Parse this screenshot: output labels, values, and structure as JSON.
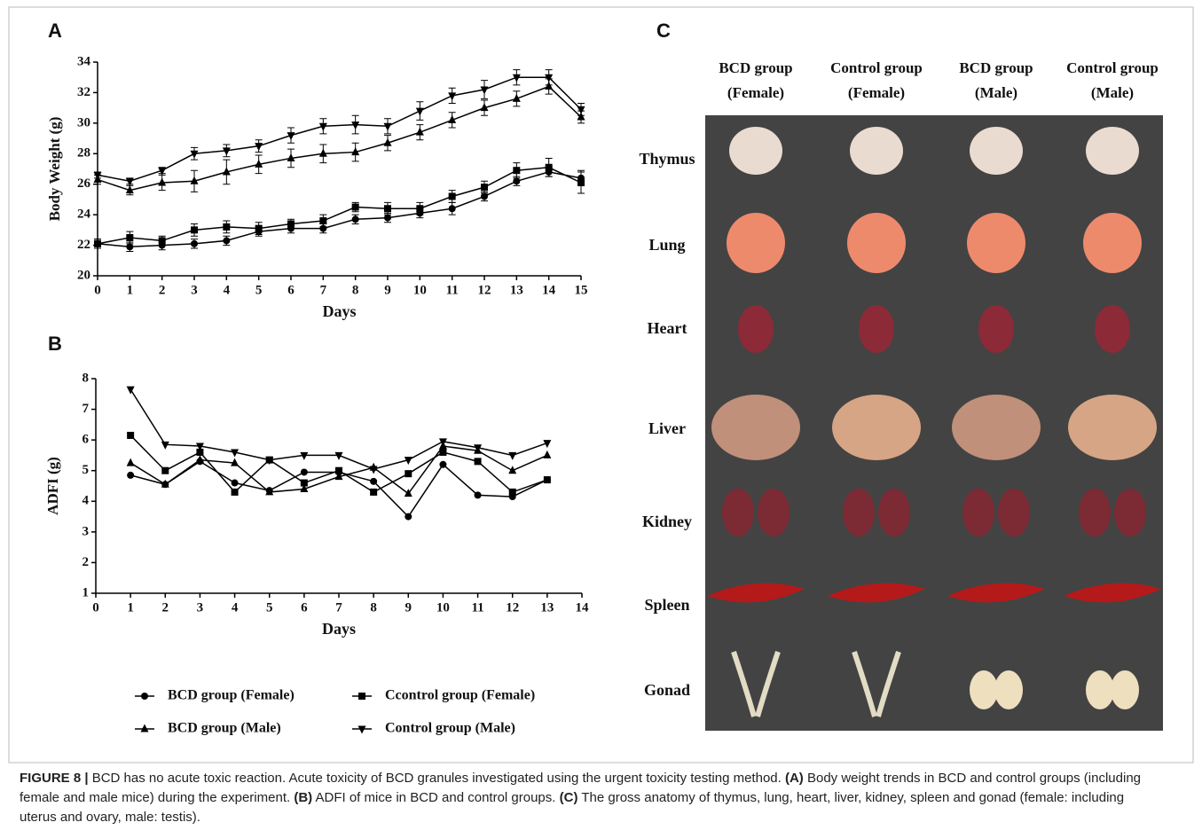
{
  "chart_data": [
    {
      "type": "line",
      "panel_label": "A",
      "x_label": "Days",
      "y_label": "Body Weight (g)",
      "x": [
        0,
        1,
        2,
        3,
        4,
        5,
        6,
        7,
        8,
        9,
        10,
        11,
        12,
        13,
        14,
        15
      ],
      "xlim": [
        0,
        15
      ],
      "xticks": [
        0,
        1,
        2,
        3,
        4,
        5,
        6,
        7,
        8,
        9,
        10,
        11,
        12,
        13,
        14,
        15
      ],
      "ylim": [
        20,
        34
      ],
      "yticks": [
        20,
        22,
        24,
        26,
        28,
        30,
        32,
        34
      ],
      "color": "#000000",
      "series": [
        {
          "marker": "circle",
          "values": [
            22.1,
            21.9,
            22.0,
            22.1,
            22.3,
            22.9,
            23.1,
            23.1,
            23.7,
            23.8,
            24.1,
            24.4,
            25.2,
            26.2,
            26.8,
            26.4
          ],
          "errors": [
            0.3,
            0.3,
            0.3,
            0.3,
            0.3,
            0.3,
            0.3,
            0.3,
            0.3,
            0.3,
            0.3,
            0.4,
            0.3,
            0.3,
            0.3,
            0.5
          ]
        },
        {
          "marker": "square",
          "values": [
            22.1,
            22.5,
            22.3,
            23.0,
            23.2,
            23.1,
            23.4,
            23.6,
            24.5,
            24.4,
            24.4,
            25.2,
            25.8,
            26.9,
            27.1,
            26.1
          ],
          "errors": [
            0.3,
            0.4,
            0.3,
            0.4,
            0.4,
            0.4,
            0.3,
            0.4,
            0.3,
            0.4,
            0.4,
            0.4,
            0.4,
            0.5,
            0.6,
            0.7
          ]
        },
        {
          "marker": "triangle-up",
          "values": [
            26.3,
            25.6,
            26.1,
            26.2,
            26.8,
            27.3,
            27.7,
            28.0,
            28.1,
            28.7,
            29.4,
            30.2,
            31.0,
            31.6,
            32.4,
            30.4
          ],
          "errors": [
            0.3,
            0.3,
            0.5,
            0.7,
            0.8,
            0.6,
            0.6,
            0.6,
            0.6,
            0.5,
            0.5,
            0.5,
            0.5,
            0.5,
            0.5,
            0.4
          ]
        },
        {
          "marker": "triangle-down",
          "values": [
            26.6,
            26.2,
            26.9,
            28.0,
            28.2,
            28.5,
            29.2,
            29.8,
            29.9,
            29.8,
            30.8,
            31.8,
            32.2,
            33.0,
            33.0,
            30.9
          ],
          "errors": [
            0.2,
            0.2,
            0.2,
            0.4,
            0.4,
            0.4,
            0.5,
            0.5,
            0.6,
            0.5,
            0.6,
            0.5,
            0.6,
            0.5,
            0.5,
            0.4
          ]
        }
      ]
    },
    {
      "type": "line",
      "panel_label": "B",
      "x_label": "Days",
      "y_label": "ADFI (g)",
      "x": [
        1,
        2,
        3,
        4,
        5,
        6,
        7,
        8,
        9,
        10,
        11,
        12,
        13
      ],
      "xlim": [
        0,
        14
      ],
      "xticks": [
        0,
        1,
        2,
        3,
        4,
        5,
        6,
        7,
        8,
        9,
        10,
        11,
        12,
        13,
        14
      ],
      "ylim": [
        1,
        8
      ],
      "yticks": [
        1,
        2,
        3,
        4,
        5,
        6,
        7,
        8
      ],
      "color": "#000000",
      "series": [
        {
          "name": "BCD group (Female)",
          "marker": "circle",
          "values": [
            4.85,
            4.55,
            5.3,
            4.6,
            4.35,
            4.95,
            4.95,
            4.65,
            3.5,
            5.2,
            4.2,
            4.15,
            4.7
          ]
        },
        {
          "name": "Ccontrol group (Female)",
          "marker": "square",
          "values": [
            6.15,
            5.0,
            5.6,
            4.3,
            5.35,
            4.6,
            5.0,
            4.3,
            4.9,
            5.6,
            5.3,
            4.3,
            4.7
          ]
        },
        {
          "name": "BCD group (Male)",
          "marker": "triangle-up",
          "values": [
            5.25,
            4.55,
            5.35,
            5.25,
            4.3,
            4.4,
            4.8,
            5.1,
            4.25,
            5.8,
            5.65,
            5.0,
            5.5
          ]
        },
        {
          "name": "Control group (Male)",
          "marker": "triangle-down",
          "values": [
            7.65,
            5.85,
            5.8,
            5.6,
            5.35,
            5.5,
            5.5,
            5.05,
            5.35,
            5.95,
            5.75,
            5.5,
            5.9
          ]
        }
      ]
    }
  ],
  "panel_c": {
    "label": "C",
    "columns": [
      [
        "BCD group",
        "(Female)"
      ],
      [
        "Control group",
        "(Female)"
      ],
      [
        "BCD group",
        "(Male)"
      ],
      [
        "Control group",
        "(Male)"
      ]
    ],
    "rows": [
      "Thymus",
      "Lung",
      "Heart",
      "Liver",
      "Kidney",
      "Spleen",
      "Gonad"
    ]
  },
  "caption": {
    "label": "FIGURE 8 |",
    "intro": "BCD has no acute toxic reaction. Acute toxicity of BCD granules investigated using the urgent toxicity testing method.",
    "a_label": "(A)",
    "a_text": "Body weight trends in BCD and control groups (including female and male mice) during the experiment.",
    "b_label": "(B)",
    "b_text": "ADFI of mice in BCD and control groups.",
    "c_label": "(C)",
    "c_text": "The gross anatomy of thymus, lung, heart, liver, kidney, spleen and gonad (female: including uterus and ovary, male: testis)."
  }
}
